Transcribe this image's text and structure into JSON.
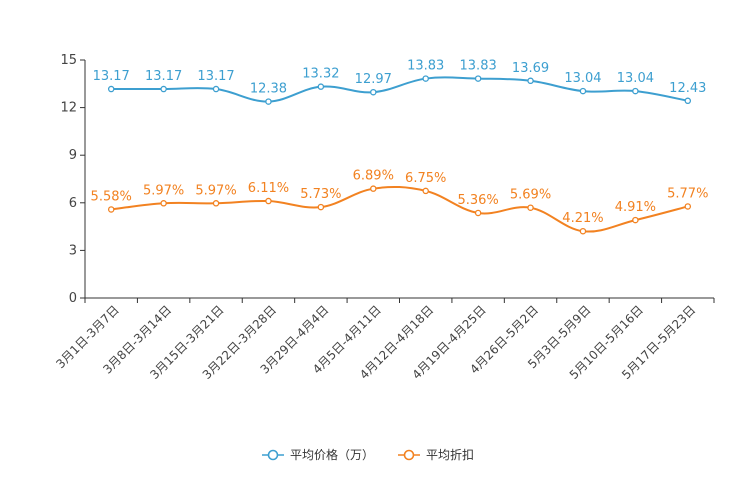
{
  "chart_data": {
    "type": "line",
    "title": "",
    "xlabel": "",
    "ylabel": "",
    "ylim": [
      0,
      15
    ],
    "yticks": [
      0,
      3,
      6,
      9,
      12,
      15
    ],
    "grid": false,
    "legend_position": "bottom-center",
    "categories": [
      "3月1日-3月7日",
      "3月8日-3月14日",
      "3月15日-3月21日",
      "3月22日-3月28日",
      "3月29日-4月4日",
      "4月5日-4月11日",
      "4月12日-4月18日",
      "4月19日-4月25日",
      "4月26日-5月2日",
      "5月3日-5月9日",
      "5月10日-5月16日",
      "5月17日-5月23日"
    ],
    "series": [
      {
        "name": "平均价格（万）",
        "color": "#3d9fd0",
        "values": [
          13.17,
          13.17,
          13.17,
          12.38,
          13.32,
          12.97,
          13.83,
          13.83,
          13.69,
          13.04,
          13.04,
          12.43
        ],
        "labels": [
          "13.17",
          "13.17",
          "13.17",
          "12.38",
          "13.32",
          "12.97",
          "13.83",
          "13.83",
          "13.69",
          "13.04",
          "13.04",
          "12.43"
        ]
      },
      {
        "name": "平均折扣",
        "color": "#f28221",
        "values": [
          5.58,
          5.97,
          5.97,
          6.11,
          5.73,
          6.89,
          6.75,
          5.36,
          5.69,
          4.21,
          4.91,
          5.77
        ],
        "labels": [
          "5.58%",
          "5.97%",
          "5.97%",
          "6.11%",
          "5.73%",
          "6.89%",
          "6.75%",
          "5.36%",
          "5.69%",
          "4.21%",
          "4.91%",
          "5.77%"
        ]
      }
    ]
  }
}
